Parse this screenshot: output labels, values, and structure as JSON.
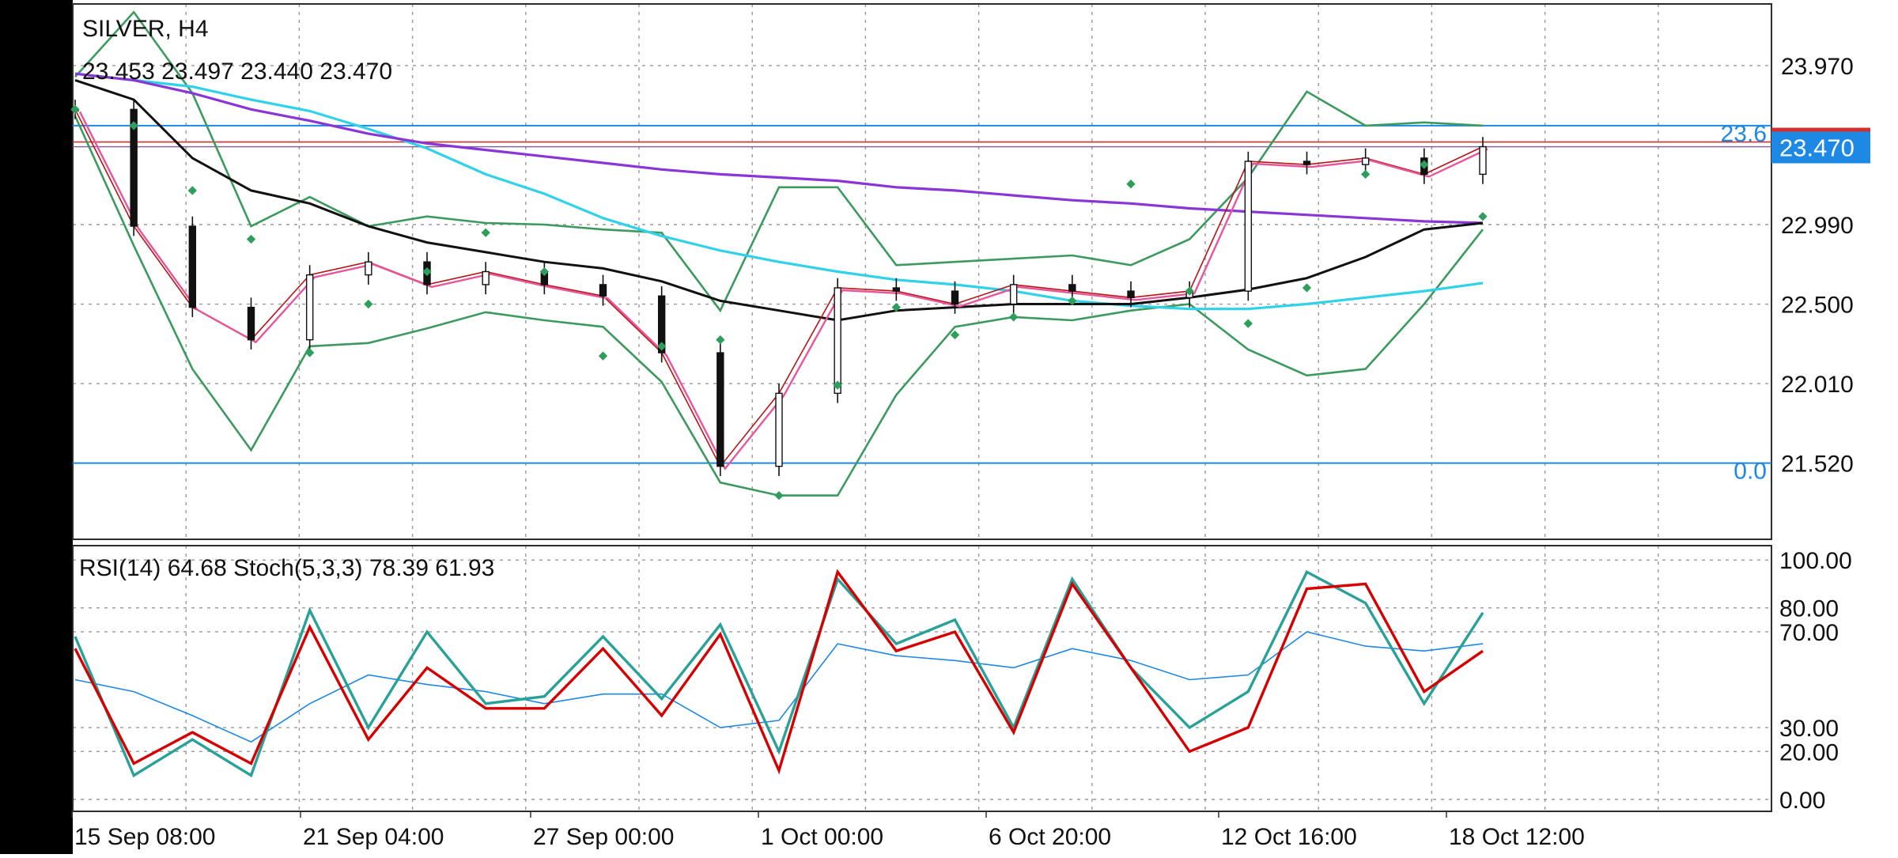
{
  "header": {
    "symbol_timeframe": "SILVER, H4",
    "ohlc": "23.453 23.497 23.440 23.470"
  },
  "price_tag": {
    "value": "23.470",
    "color": "#1e88e5"
  },
  "fib_levels": [
    {
      "label": "23.6",
      "price": 23.6
    },
    {
      "label": "0.0",
      "price": 21.52
    }
  ],
  "subwindow": {
    "title": "RSI(14) 64.68 Stoch(5,3,3) 78.39 61.93"
  },
  "chart_data": [
    {
      "type": "candlestick",
      "title": "SILVER, H4",
      "ylim": [
        21.05,
        24.35
      ],
      "y_ticks": [
        "23.970",
        "22.990",
        "22.500",
        "22.010",
        "21.520"
      ],
      "x_ticks": [
        "15 Sep 08:00",
        "21 Sep 04:00",
        "27 Sep 00:00",
        "1 Oct 00:00",
        "6 Oct 20:00",
        "12 Oct 16:00",
        "18 Oct 12:00"
      ],
      "last_price": 23.47,
      "colors": {
        "ma_black": "#111111",
        "ma_purple": "#8a35d6",
        "ma_cyan": "#2fd2e8",
        "ma_pink": "#e8559a",
        "ma_red": "#b51616",
        "bollinger": "#3c9a5e",
        "psar": "#2e9e5c",
        "horizontal_line": "#1e88e5",
        "bid_line": "#d32f2f"
      },
      "series": [
        {
          "name": "MA black",
          "values": [
            23.88,
            23.76,
            23.4,
            23.2,
            23.12,
            22.98,
            22.88,
            22.82,
            22.76,
            22.72,
            22.64,
            22.52,
            22.46,
            22.4,
            22.46,
            22.48,
            22.5,
            22.5,
            22.5,
            22.54,
            22.59,
            22.66,
            22.79,
            22.96,
            23.0
          ]
        },
        {
          "name": "MA purple",
          "values": [
            23.92,
            23.88,
            23.8,
            23.7,
            23.63,
            23.55,
            23.49,
            23.45,
            23.41,
            23.37,
            23.33,
            23.3,
            23.28,
            23.26,
            23.22,
            23.2,
            23.17,
            23.14,
            23.12,
            23.09,
            23.07,
            23.05,
            23.03,
            23.01,
            23.0
          ]
        },
        {
          "name": "MA cyan",
          "values": [
            23.92,
            23.88,
            23.84,
            23.76,
            23.69,
            23.58,
            23.46,
            23.3,
            23.18,
            23.03,
            22.92,
            22.83,
            22.76,
            22.7,
            22.65,
            22.62,
            22.58,
            22.52,
            22.49,
            22.47,
            22.47,
            22.5,
            22.54,
            22.58,
            22.63
          ]
        },
        {
          "name": "Bollinger upper",
          "values": [
            23.9,
            24.3,
            23.8,
            22.98,
            23.16,
            22.98,
            23.04,
            23.0,
            22.99,
            22.96,
            22.94,
            22.46,
            23.22,
            23.22,
            22.74,
            22.76,
            22.78,
            22.8,
            22.74,
            22.9,
            23.28,
            23.81,
            23.6,
            23.62,
            23.6
          ]
        },
        {
          "name": "Bollinger lower",
          "values": [
            23.66,
            22.86,
            22.1,
            21.6,
            22.24,
            22.26,
            22.35,
            22.45,
            22.4,
            22.36,
            22.02,
            21.4,
            21.32,
            21.32,
            21.94,
            22.36,
            22.42,
            22.4,
            22.46,
            22.5,
            22.22,
            22.06,
            22.1,
            22.5,
            22.96
          ]
        },
        {
          "name": "Parabolic SAR",
          "values": [
            23.7,
            23.6,
            23.2,
            22.9,
            22.2,
            22.5,
            22.7,
            22.94,
            22.7,
            22.18,
            22.24,
            22.28,
            21.32,
            22.0,
            22.48,
            22.31,
            22.42,
            22.52,
            23.24,
            22.58,
            22.38,
            22.6,
            23.3,
            23.36,
            23.04
          ]
        },
        {
          "name": "Close",
          "values": [
            23.7,
            22.98,
            22.48,
            22.28,
            22.68,
            22.76,
            22.62,
            22.7,
            22.62,
            22.55,
            22.2,
            21.5,
            21.95,
            22.6,
            22.58,
            22.5,
            22.62,
            22.58,
            22.54,
            22.58,
            23.38,
            23.36,
            23.4,
            23.3,
            23.47
          ]
        }
      ]
    },
    {
      "type": "line",
      "title": "RSI(14) 64.68 Stoch(5,3,3) 78.39 61.93",
      "ylim": [
        -5,
        106
      ],
      "y_ticks": [
        "100.00",
        "80.00",
        "70.00",
        "30.00",
        "20.00",
        "0.00"
      ],
      "series": [
        {
          "name": "RSI(14)",
          "color": "#1e88e5",
          "values": [
            50,
            45,
            35,
            24,
            40,
            52,
            48,
            45,
            40,
            44,
            44,
            30,
            33,
            65,
            60,
            58,
            55,
            63,
            58,
            50,
            52,
            70,
            64,
            62,
            65
          ]
        },
        {
          "name": "Stoch main",
          "color": "#2aa198",
          "values": [
            68,
            10,
            25,
            10,
            79,
            30,
            70,
            40,
            43,
            68,
            42,
            73,
            20,
            92,
            65,
            75,
            30,
            92,
            55,
            30,
            45,
            95,
            82,
            40,
            78
          ]
        },
        {
          "name": "Stoch signal",
          "color": "#d50000",
          "values": [
            63,
            15,
            28,
            15,
            72,
            25,
            55,
            38,
            38,
            63,
            35,
            69,
            12,
            95,
            62,
            70,
            28,
            90,
            55,
            20,
            30,
            88,
            90,
            45,
            62
          ]
        }
      ]
    }
  ]
}
